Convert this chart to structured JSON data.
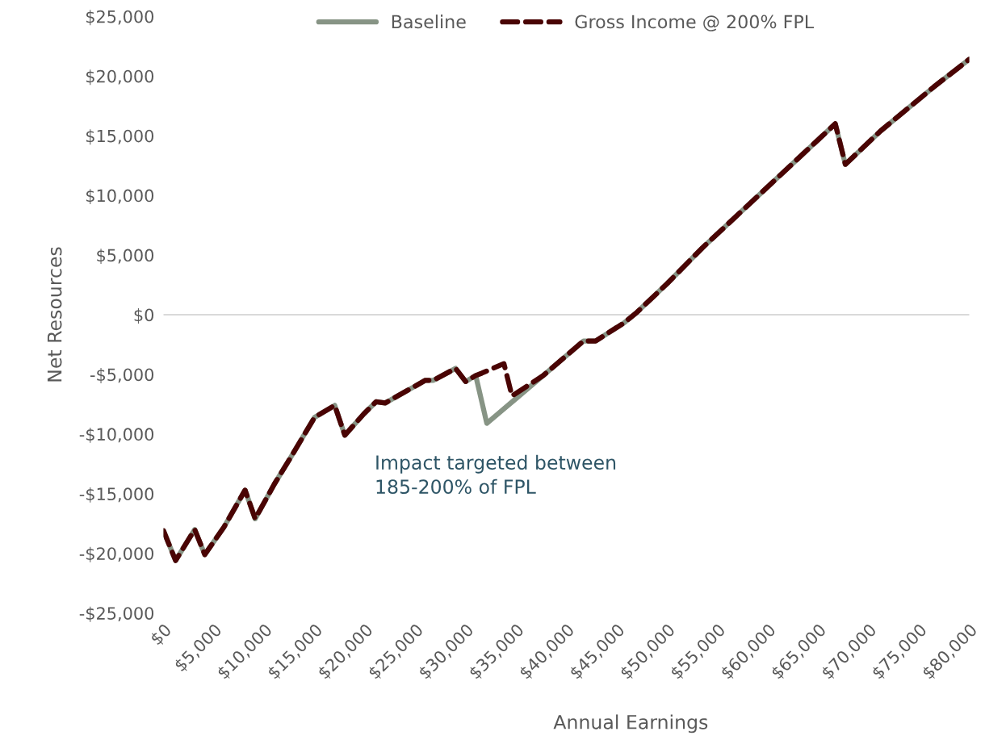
{
  "chart_data": {
    "type": "line",
    "xlabel": "Annual Earnings",
    "ylabel": "Net Resources",
    "xlim": [
      0,
      80000
    ],
    "xticks": [
      {
        "value": 0,
        "label": "$0"
      },
      {
        "value": 5000,
        "label": "$5,000"
      },
      {
        "value": 10000,
        "label": "$10,000"
      },
      {
        "value": 15000,
        "label": "$15,000"
      },
      {
        "value": 20000,
        "label": "$20,000"
      },
      {
        "value": 25000,
        "label": "$25,000"
      },
      {
        "value": 30000,
        "label": "$30,000"
      },
      {
        "value": 35000,
        "label": "$35,000"
      },
      {
        "value": 40000,
        "label": "$40,000"
      },
      {
        "value": 45000,
        "label": "$45,000"
      },
      {
        "value": 50000,
        "label": "$50,000"
      },
      {
        "value": 55000,
        "label": "$55,000"
      },
      {
        "value": 60000,
        "label": "$60,000"
      },
      {
        "value": 65000,
        "label": "$65,000"
      },
      {
        "value": 70000,
        "label": "$70,000"
      },
      {
        "value": 75000,
        "label": "$75,000"
      },
      {
        "value": 80000,
        "label": "$80,000"
      }
    ],
    "ylim": [
      -25000,
      25000
    ],
    "yticks": [
      {
        "value": -25000,
        "label": "-$25,000"
      },
      {
        "value": -20000,
        "label": "-$20,000"
      },
      {
        "value": -15000,
        "label": "-$15,000"
      },
      {
        "value": -10000,
        "label": "-$10,000"
      },
      {
        "value": -5000,
        "label": "-$5,000"
      },
      {
        "value": 0,
        "label": "$0"
      },
      {
        "value": 5000,
        "label": "$5,000"
      },
      {
        "value": 10000,
        "label": "$10,000"
      },
      {
        "value": 15000,
        "label": "$15,000"
      },
      {
        "value": 20000,
        "label": "$20,000"
      },
      {
        "value": 25000,
        "label": "$25,000"
      }
    ],
    "grid": false,
    "legend": "top",
    "marker": "none",
    "ref_lines": [
      {
        "axis": "y",
        "value": 0,
        "color": "#d9d9d9"
      }
    ],
    "annotations": [
      "Impact targeted between\n185-200% of FPL"
    ],
    "series": [
      {
        "name": "Baseline",
        "color": "#879485",
        "line_style": "solid",
        "x": [
          0,
          1200,
          3100,
          4100,
          6000,
          8100,
          9100,
          11000,
          12600,
          15000,
          17000,
          18000,
          19900,
          21100,
          22000,
          26000,
          26800,
          29000,
          30000,
          31000,
          32100,
          34900,
          37700,
          41700,
          42900,
          45700,
          47000,
          50000,
          53500,
          66700,
          67700,
          71200,
          76500,
          80000
        ],
        "values": [
          -18100,
          -20600,
          -18000,
          -20100,
          -17800,
          -14700,
          -17100,
          -14200,
          -12000,
          -8600,
          -7600,
          -10100,
          -8300,
          -7300,
          -7400,
          -5500,
          -5500,
          -4500,
          -5600,
          -5100,
          -9100,
          -7100,
          -5100,
          -2200,
          -2200,
          -700,
          200,
          2600,
          5600,
          16000,
          12600,
          15400,
          19100,
          21400
        ]
      },
      {
        "name": "Gross Income @ 200% FPL",
        "color": "#4a0404",
        "line_style": "dashed",
        "x": [
          0,
          1200,
          3100,
          4100,
          6000,
          8100,
          9100,
          11000,
          12600,
          15000,
          17000,
          18000,
          19900,
          21100,
          22000,
          26000,
          26800,
          29000,
          30000,
          31000,
          31600,
          33800,
          34600,
          37700,
          41700,
          42900,
          45700,
          47000,
          50000,
          53500,
          66700,
          67700,
          71200,
          76500,
          80000
        ],
        "values": [
          -18100,
          -20600,
          -18000,
          -20100,
          -17800,
          -14700,
          -17100,
          -14200,
          -12000,
          -8600,
          -7600,
          -10100,
          -8300,
          -7300,
          -7400,
          -5500,
          -5500,
          -4500,
          -5600,
          -5100,
          -4900,
          -4100,
          -6800,
          -5100,
          -2200,
          -2200,
          -700,
          200,
          2600,
          5600,
          16000,
          12600,
          15400,
          19100,
          21400
        ]
      }
    ]
  }
}
